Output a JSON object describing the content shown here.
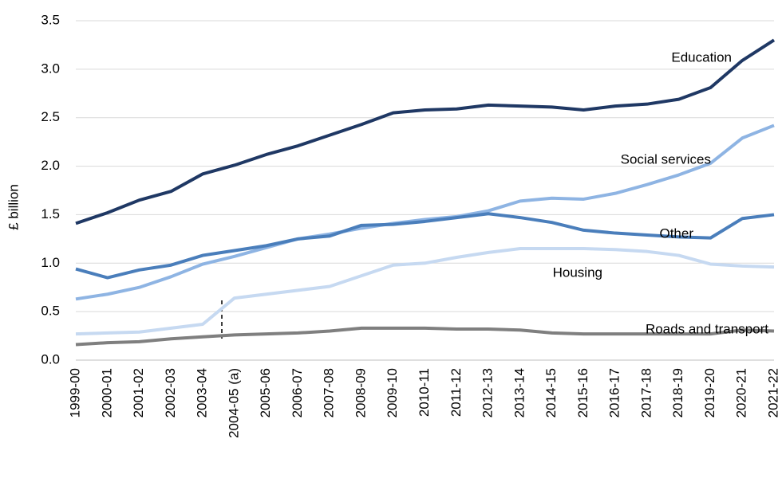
{
  "chart_data": {
    "type": "line",
    "y_label": "£ billion",
    "categories": [
      "1999-00",
      "2000-01",
      "2001-02",
      "2002-03",
      "2003-04",
      "2004-05 (a)",
      "2005-06",
      "2006-07",
      "2007-08",
      "2008-09",
      "2009-10",
      "2010-11",
      "2011-12",
      "2012-13",
      "2013-14",
      "2014-15",
      "2015-16",
      "2016-17",
      "2017-18",
      "2018-19",
      "2019-20",
      "2020-21",
      "2021-22"
    ],
    "series": [
      {
        "name": "Education",
        "color": "#1f3864",
        "values": [
          1.41,
          1.52,
          1.65,
          1.74,
          1.92,
          2.01,
          2.12,
          2.21,
          2.32,
          2.43,
          2.55,
          2.58,
          2.59,
          2.63,
          2.62,
          2.61,
          2.58,
          2.62,
          2.64,
          2.69,
          2.81,
          3.09,
          3.3
        ]
      },
      {
        "name": "Social services",
        "color": "#8eb4e3",
        "values": [
          0.63,
          0.68,
          0.75,
          0.86,
          0.99,
          1.07,
          1.16,
          1.25,
          1.3,
          1.36,
          1.41,
          1.45,
          1.48,
          1.54,
          1.64,
          1.67,
          1.66,
          1.72,
          1.81,
          1.91,
          2.03,
          2.29,
          2.42
        ]
      },
      {
        "name": "Other",
        "color": "#4a7ebb",
        "values": [
          0.94,
          0.85,
          0.93,
          0.98,
          1.08,
          1.13,
          1.18,
          1.25,
          1.28,
          1.39,
          1.4,
          1.43,
          1.47,
          1.51,
          1.47,
          1.42,
          1.34,
          1.31,
          1.29,
          1.27,
          1.26,
          1.46,
          1.5
        ]
      },
      {
        "name": "Housing",
        "color": "#c6d9f1",
        "values": [
          0.27,
          0.28,
          0.29,
          0.33,
          0.37,
          0.64,
          0.68,
          0.72,
          0.76,
          0.87,
          0.98,
          1.0,
          1.06,
          1.11,
          1.15,
          1.15,
          1.15,
          1.14,
          1.12,
          1.08,
          0.99,
          0.97,
          0.96
        ]
      },
      {
        "name": "Roads and transport",
        "color": "#7f7f7f",
        "values": [
          0.16,
          0.18,
          0.19,
          0.22,
          0.24,
          0.26,
          0.27,
          0.28,
          0.3,
          0.33,
          0.33,
          0.33,
          0.32,
          0.32,
          0.31,
          0.28,
          0.27,
          0.27,
          0.27,
          0.27,
          0.27,
          0.31,
          0.3
        ]
      }
    ],
    "ylim": [
      0,
      3.5
    ],
    "yticks": [
      {
        "value": 0,
        "label": "0.0"
      },
      0.5,
      {
        "value": 1,
        "label": "1.0"
      },
      1.5,
      {
        "value": 2,
        "label": "2.0"
      },
      2.5,
      {
        "value": 3,
        "label": "3.0"
      },
      3.5
    ],
    "grid": true
  }
}
